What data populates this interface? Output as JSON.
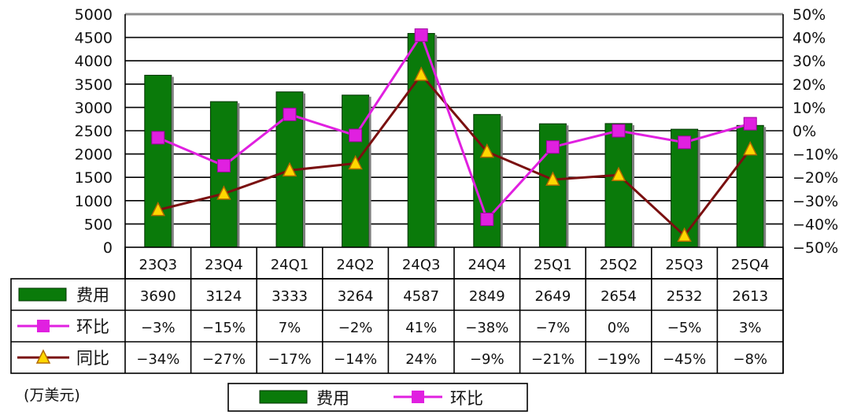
{
  "chart_data": {
    "type": "bar",
    "categories": [
      "23Q3",
      "23Q4",
      "24Q1",
      "24Q2",
      "24Q3",
      "24Q4",
      "25Q1",
      "25Q2",
      "25Q3",
      "25Q4"
    ],
    "y_left": {
      "min": 0,
      "max": 5000,
      "step": 500
    },
    "y_right": {
      "min": -50,
      "max": 50,
      "step": 10,
      "unit": "%"
    },
    "grid": true,
    "series": [
      {
        "name": "费用",
        "kind": "bar",
        "axis": "left",
        "color": "#0a7a0a",
        "values": [
          3690,
          3124,
          3333,
          3264,
          4587,
          2849,
          2649,
          2654,
          2532,
          2613
        ],
        "labels": [
          "3690",
          "3124",
          "3333",
          "3264",
          "4587",
          "2849",
          "2649",
          "2654",
          "2532",
          "2613"
        ]
      },
      {
        "name": "环比",
        "kind": "line",
        "axis": "right",
        "color": "#e020e0",
        "marker": "square",
        "values": [
          -3,
          -15,
          7,
          -2,
          41,
          -38,
          -7,
          0,
          -5,
          3
        ],
        "labels": [
          "−3%",
          "−15%",
          "7%",
          "−2%",
          "41%",
          "−38%",
          "−7%",
          "0%",
          "−5%",
          "3%"
        ]
      },
      {
        "name": "同比",
        "kind": "line",
        "axis": "right",
        "color": "#7a1010",
        "marker": "triangle",
        "marker_fill": "#ffd700",
        "values": [
          -34,
          -27,
          -17,
          -14,
          24,
          -9,
          -21,
          -19,
          -45,
          -8
        ],
        "labels": [
          "−34%",
          "−27%",
          "−17%",
          "−14%",
          "24%",
          "−9%",
          "−21%",
          "−19%",
          "−45%",
          "−8%"
        ]
      }
    ],
    "unit_label": "(万美元)",
    "legend": {
      "position": "bottom-center",
      "items": [
        "费用",
        "环比"
      ]
    }
  }
}
